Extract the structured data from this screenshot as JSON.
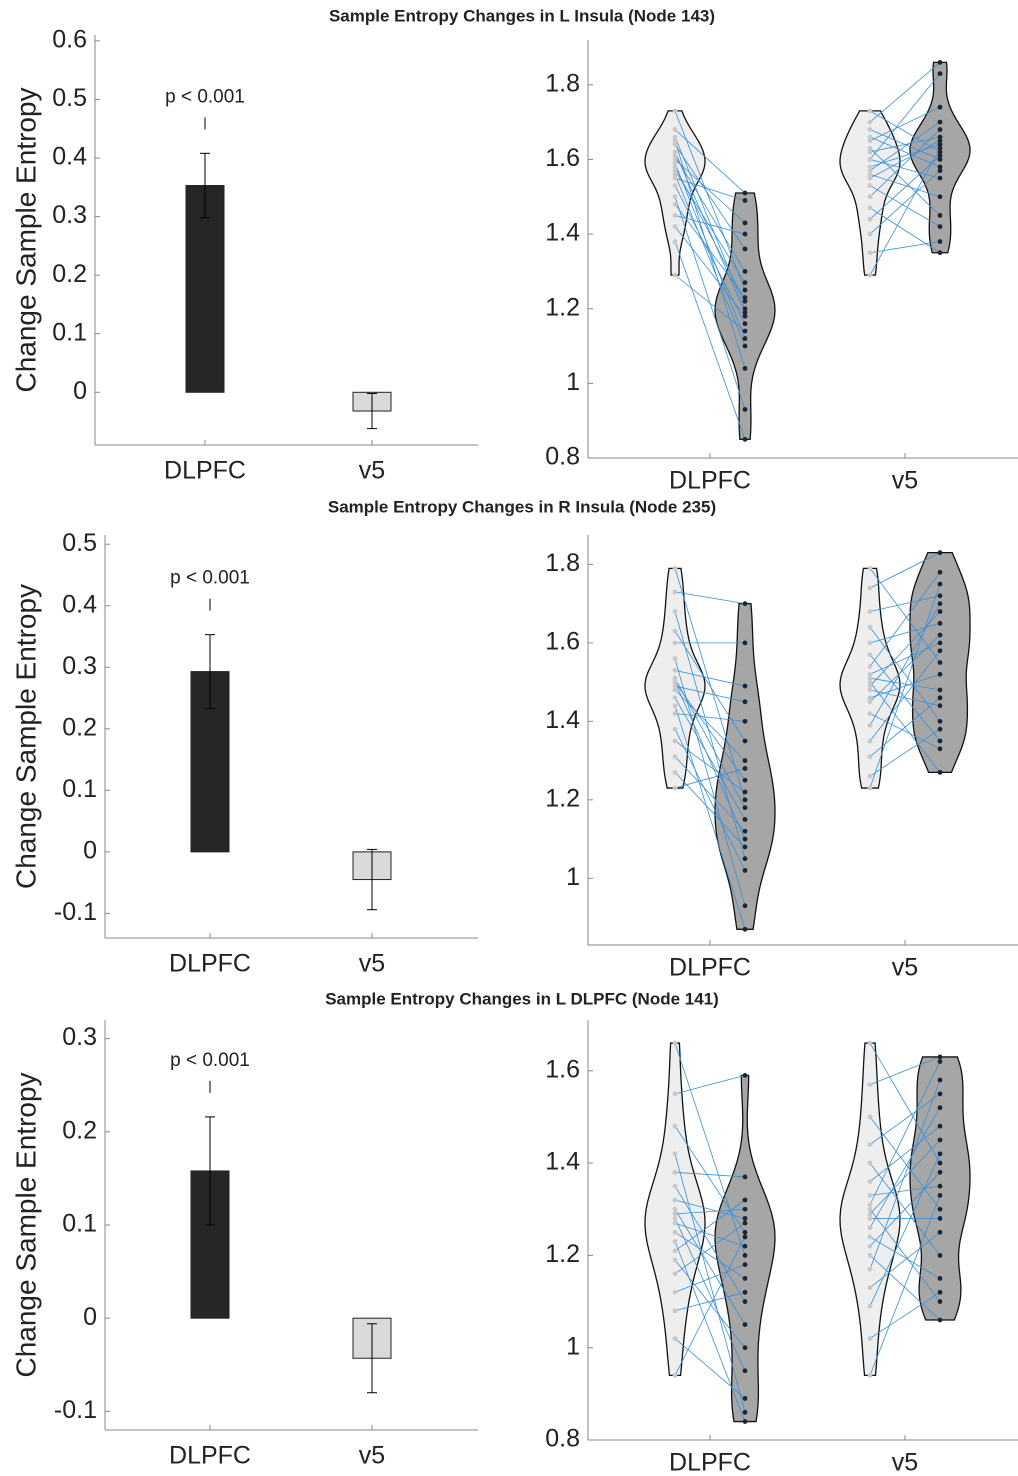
{
  "chart_data": [
    {
      "type": "bar",
      "title": "Sample Entropy Changes in L Insula (Node 143)",
      "ylabel": "Change Sample Entropy",
      "categories": [
        "DLPFC",
        "v5"
      ],
      "values": [
        0.353,
        -0.032
      ],
      "errors": [
        0.055,
        0.03
      ],
      "colors": [
        "#262626",
        "#d9d9d9"
      ],
      "annotation": "p < 0.001",
      "ylim": [
        -0.09,
        0.61
      ],
      "yticks": [
        0,
        0.1,
        0.2,
        0.3,
        0.4,
        0.5,
        0.6
      ]
    },
    {
      "type": "violin",
      "categories": [
        "DLPFC",
        "v5"
      ],
      "line_color": "#3a8fd6",
      "ylim": [
        0.8,
        1.92
      ],
      "yticks": [
        0.8,
        1,
        1.2,
        1.4,
        1.6,
        1.8
      ],
      "series": [
        {
          "color": "#eeeeee",
          "point_color": "#c8c8c8",
          "values": [
            [
              1.73,
              1.68,
              1.66,
              1.65,
              1.64,
              1.62,
              1.61,
              1.6,
              1.59,
              1.58,
              1.57,
              1.56,
              1.55,
              1.53,
              1.5,
              1.48,
              1.45,
              1.42,
              1.38,
              1.29
            ],
            [
              1.73,
              1.7,
              1.68,
              1.66,
              1.65,
              1.63,
              1.62,
              1.6,
              1.6,
              1.58,
              1.57,
              1.56,
              1.55,
              1.53,
              1.5,
              1.47,
              1.44,
              1.4,
              1.35,
              1.29
            ]
          ]
        },
        {
          "color": "#a6a6a6",
          "point_color": "#1f2530",
          "values": [
            [
              1.25,
              1.51,
              1.2,
              1.04,
              1.36,
              1.19,
              1.3,
              1.43,
              1.12,
              1.22,
              1.27,
              1.1,
              1.49,
              1.16,
              0.93,
              1.23,
              1.4,
              1.18,
              0.85,
              1.14
            ],
            [
              1.62,
              1.86,
              1.6,
              1.58,
              1.74,
              1.45,
              1.66,
              1.83,
              1.55,
              1.64,
              1.7,
              1.5,
              1.65,
              1.42,
              1.68,
              1.35,
              1.61,
              1.57,
              1.38,
              1.63
            ]
          ]
        }
      ]
    },
    {
      "type": "bar",
      "title": "Sample Entropy Changes in R Insula (Node 235)",
      "ylabel": "Change Sample Entropy",
      "categories": [
        "DLPFC",
        "v5"
      ],
      "values": [
        0.293,
        -0.045
      ],
      "errors": [
        0.06,
        0.049
      ],
      "colors": [
        "#262626",
        "#d9d9d9"
      ],
      "annotation": "p < 0.001",
      "ylim": [
        -0.14,
        0.515
      ],
      "yticks": [
        -0.1,
        0,
        0.1,
        0.2,
        0.3,
        0.4,
        0.5
      ]
    },
    {
      "type": "violin",
      "categories": [
        "DLPFC",
        "v5"
      ],
      "line_color": "#3a8fd6",
      "ylim": [
        0.83,
        1.875
      ],
      "yticks": [
        1,
        1.2,
        1.4,
        1.6,
        1.8
      ],
      "series": [
        {
          "color": "#eeeeee",
          "point_color": "#c8c8c8",
          "values": [
            [
              1.79,
              1.73,
              1.68,
              1.63,
              1.6,
              1.56,
              1.53,
              1.51,
              1.5,
              1.5,
              1.49,
              1.48,
              1.46,
              1.44,
              1.42,
              1.38,
              1.35,
              1.31,
              1.27,
              1.23
            ],
            [
              1.79,
              1.74,
              1.68,
              1.64,
              1.6,
              1.57,
              1.54,
              1.52,
              1.51,
              1.5,
              1.49,
              1.48,
              1.46,
              1.45,
              1.42,
              1.39,
              1.35,
              1.31,
              1.26,
              1.23
            ]
          ]
        },
        {
          "color": "#a6a6a6",
          "point_color": "#1f2530",
          "values": [
            [
              1.2,
              1.7,
              1.05,
              1.35,
              1.6,
              0.93,
              1.49,
              1.18,
              1.25,
              1.1,
              1.45,
              1.3,
              1.15,
              0.87,
              1.4,
              1.02,
              1.22,
              1.12,
              1.08,
              1.28
            ],
            [
              1.55,
              1.83,
              1.72,
              1.4,
              1.65,
              1.35,
              1.78,
              1.6,
              1.48,
              1.27,
              1.68,
              1.44,
              1.52,
              1.62,
              1.33,
              1.7,
              1.58,
              1.46,
              1.38,
              1.75
            ]
          ]
        }
      ]
    },
    {
      "type": "bar",
      "title": "Sample Entropy Changes in L DLPFC (Node 141)",
      "ylabel": "Change Sample Entropy",
      "categories": [
        "DLPFC",
        "v5"
      ],
      "values": [
        0.158,
        -0.043
      ],
      "errors": [
        0.058,
        0.037
      ],
      "colors": [
        "#262626",
        "#d9d9d9"
      ],
      "annotation": "p < 0.001",
      "ylim": [
        -0.12,
        0.32
      ],
      "yticks": [
        -0.1,
        0,
        0.1,
        0.2,
        0.3
      ]
    },
    {
      "type": "violin",
      "categories": [
        "DLPFC",
        "v5"
      ],
      "line_color": "#3a8fd6",
      "ylim": [
        0.8,
        1.71
      ],
      "yticks": [
        0.8,
        1,
        1.2,
        1.4,
        1.6
      ],
      "series": [
        {
          "color": "#eeeeee",
          "point_color": "#c8c8c8",
          "values": [
            [
              1.66,
              1.55,
              1.48,
              1.42,
              1.38,
              1.35,
              1.32,
              1.3,
              1.29,
              1.28,
              1.27,
              1.25,
              1.23,
              1.21,
              1.19,
              1.16,
              1.12,
              1.08,
              1.02,
              0.94
            ],
            [
              1.66,
              1.57,
              1.5,
              1.44,
              1.4,
              1.36,
              1.33,
              1.31,
              1.3,
              1.29,
              1.28,
              1.26,
              1.24,
              1.22,
              1.2,
              1.17,
              1.13,
              1.09,
              1.02,
              0.94
            ]
          ]
        },
        {
          "color": "#a6a6a6",
          "point_color": "#1f2530",
          "values": [
            [
              1.2,
              1.59,
              1.25,
              0.86,
              1.37,
              1.1,
              1.28,
              1.05,
              1.3,
              0.95,
              1.22,
              1.15,
              0.84,
              1.32,
              1.0,
              1.27,
              1.18,
              1.12,
              0.89,
              1.24
            ],
            [
              1.4,
              1.63,
              1.3,
              1.55,
              1.2,
              1.48,
              1.35,
              1.62,
              1.1,
              1.45,
              1.28,
              1.52,
              1.15,
              1.38,
              1.06,
              1.58,
              1.25,
              1.42,
              1.12,
              1.33
            ]
          ]
        }
      ]
    }
  ]
}
